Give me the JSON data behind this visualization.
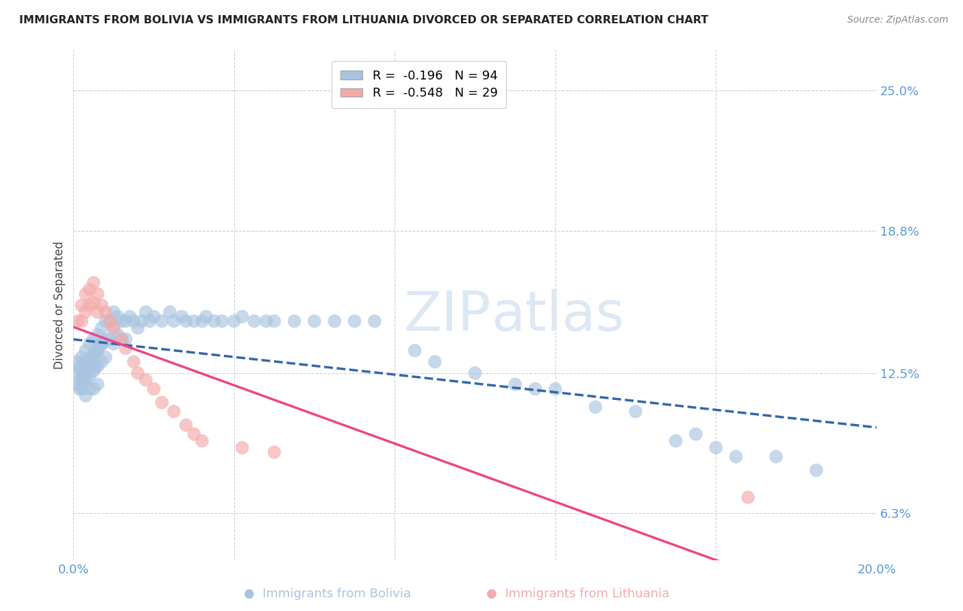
{
  "title": "IMMIGRANTS FROM BOLIVIA VS IMMIGRANTS FROM LITHUANIA DIVORCED OR SEPARATED CORRELATION CHART",
  "source": "Source: ZipAtlas.com",
  "ylabel_label": "Divorced or Separated",
  "xmin": 0.0,
  "xmax": 0.2,
  "ymin": 0.042,
  "ymax": 0.268,
  "legend_r_bolivia": "R =  -0.196",
  "legend_n_bolivia": "N = 94",
  "legend_r_lithuania": "R =  -0.548",
  "legend_n_lithuania": "N = 29",
  "color_bolivia": "#A8C4E0",
  "color_lithuania": "#F4AAAA",
  "color_trendline_bolivia": "#3366AA",
  "color_trendline_lithuania": "#EE4488",
  "ytick_vals": [
    0.063,
    0.125,
    0.188,
    0.25
  ],
  "ytick_labels": [
    "6.3%",
    "12.5%",
    "18.8%",
    "25.0%"
  ],
  "xtick_vals": [
    0.0,
    0.04,
    0.08,
    0.12,
    0.16,
    0.2
  ],
  "xtick_labels": [
    "0.0%",
    "",
    "",
    "",
    "",
    "20.0%"
  ],
  "bolivia_x": [
    0.0008,
    0.001,
    0.0012,
    0.0015,
    0.0015,
    0.0018,
    0.002,
    0.002,
    0.002,
    0.0022,
    0.0025,
    0.0025,
    0.003,
    0.003,
    0.003,
    0.003,
    0.0032,
    0.0035,
    0.004,
    0.004,
    0.004,
    0.004,
    0.0042,
    0.0045,
    0.005,
    0.005,
    0.005,
    0.005,
    0.0052,
    0.0055,
    0.006,
    0.006,
    0.006,
    0.006,
    0.0062,
    0.007,
    0.007,
    0.007,
    0.0072,
    0.008,
    0.008,
    0.008,
    0.009,
    0.009,
    0.01,
    0.01,
    0.01,
    0.011,
    0.011,
    0.012,
    0.012,
    0.013,
    0.013,
    0.014,
    0.015,
    0.016,
    0.017,
    0.018,
    0.019,
    0.02,
    0.022,
    0.024,
    0.025,
    0.027,
    0.028,
    0.03,
    0.032,
    0.033,
    0.035,
    0.037,
    0.04,
    0.042,
    0.045,
    0.048,
    0.05,
    0.055,
    0.06,
    0.065,
    0.07,
    0.075,
    0.085,
    0.09,
    0.1,
    0.11,
    0.115,
    0.12,
    0.13,
    0.14,
    0.15,
    0.155,
    0.16,
    0.165,
    0.175,
    0.185
  ],
  "bolivia_y": [
    0.13,
    0.125,
    0.12,
    0.128,
    0.118,
    0.122,
    0.132,
    0.126,
    0.118,
    0.124,
    0.13,
    0.122,
    0.135,
    0.128,
    0.122,
    0.115,
    0.13,
    0.125,
    0.138,
    0.13,
    0.124,
    0.118,
    0.132,
    0.128,
    0.14,
    0.133,
    0.126,
    0.118,
    0.134,
    0.128,
    0.142,
    0.135,
    0.128,
    0.12,
    0.136,
    0.145,
    0.138,
    0.13,
    0.138,
    0.148,
    0.14,
    0.132,
    0.148,
    0.14,
    0.152,
    0.145,
    0.138,
    0.15,
    0.142,
    0.148,
    0.14,
    0.148,
    0.14,
    0.15,
    0.148,
    0.145,
    0.148,
    0.152,
    0.148,
    0.15,
    0.148,
    0.152,
    0.148,
    0.15,
    0.148,
    0.148,
    0.148,
    0.15,
    0.148,
    0.148,
    0.148,
    0.15,
    0.148,
    0.148,
    0.148,
    0.148,
    0.148,
    0.148,
    0.148,
    0.148,
    0.135,
    0.13,
    0.125,
    0.12,
    0.118,
    0.118,
    0.11,
    0.108,
    0.095,
    0.098,
    0.092,
    0.088,
    0.088,
    0.082
  ],
  "lithuania_x": [
    0.001,
    0.002,
    0.002,
    0.003,
    0.003,
    0.004,
    0.004,
    0.005,
    0.005,
    0.006,
    0.006,
    0.007,
    0.008,
    0.009,
    0.01,
    0.012,
    0.013,
    0.015,
    0.016,
    0.018,
    0.02,
    0.022,
    0.025,
    0.028,
    0.03,
    0.032,
    0.042,
    0.05,
    0.168
  ],
  "lithuania_y": [
    0.148,
    0.155,
    0.148,
    0.16,
    0.152,
    0.162,
    0.155,
    0.165,
    0.156,
    0.16,
    0.152,
    0.155,
    0.152,
    0.148,
    0.145,
    0.14,
    0.136,
    0.13,
    0.125,
    0.122,
    0.118,
    0.112,
    0.108,
    0.102,
    0.098,
    0.095,
    0.092,
    0.09,
    0.07
  ]
}
